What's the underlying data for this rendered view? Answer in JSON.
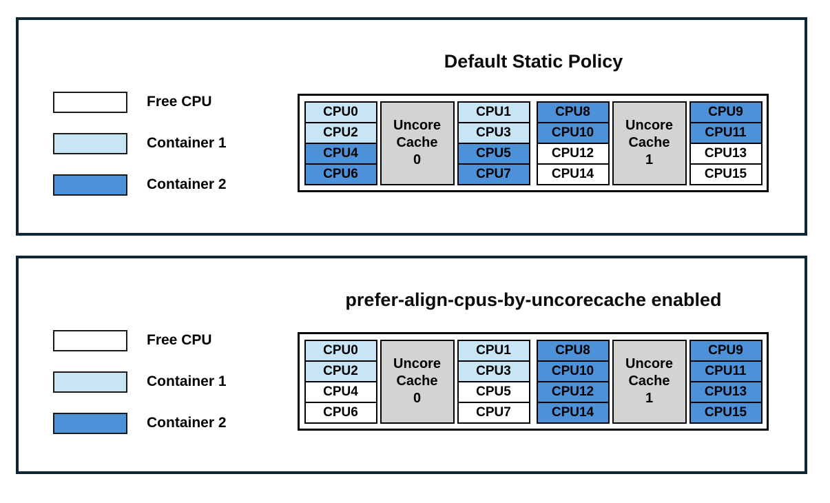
{
  "colors": {
    "free_cpu": "#ffffff",
    "container1": "#c7e5f5",
    "container2": "#4d92d9",
    "uncore_cache_bg": "#d3d3d1",
    "panel_border": "#0d2635",
    "cell_border": "#000000"
  },
  "legend": [
    {
      "label": "Free CPU",
      "state": "free"
    },
    {
      "label": "Container 1",
      "state": "container1"
    },
    {
      "label": "Container 2",
      "state": "container2"
    }
  ],
  "panels": [
    {
      "title": "Default Static Policy",
      "groups": [
        {
          "uncore_lines": [
            "Uncore",
            "Cache",
            "0"
          ],
          "left_cpus": [
            {
              "label": "CPU0",
              "state": "container1"
            },
            {
              "label": "CPU2",
              "state": "container1"
            },
            {
              "label": "CPU4",
              "state": "container2"
            },
            {
              "label": "CPU6",
              "state": "container2"
            }
          ],
          "right_cpus": [
            {
              "label": "CPU1",
              "state": "container1"
            },
            {
              "label": "CPU3",
              "state": "container1"
            },
            {
              "label": "CPU5",
              "state": "container2"
            },
            {
              "label": "CPU7",
              "state": "container2"
            }
          ]
        },
        {
          "uncore_lines": [
            "Uncore",
            "Cache",
            "1"
          ],
          "left_cpus": [
            {
              "label": "CPU8",
              "state": "container2"
            },
            {
              "label": "CPU10",
              "state": "container2"
            },
            {
              "label": "CPU12",
              "state": "free"
            },
            {
              "label": "CPU14",
              "state": "free"
            }
          ],
          "right_cpus": [
            {
              "label": "CPU9",
              "state": "container2"
            },
            {
              "label": "CPU11",
              "state": "container2"
            },
            {
              "label": "CPU13",
              "state": "free"
            },
            {
              "label": "CPU15",
              "state": "free"
            }
          ]
        }
      ]
    },
    {
      "title": "prefer-align-cpus-by-uncorecache enabled",
      "groups": [
        {
          "uncore_lines": [
            "Uncore",
            "Cache",
            "0"
          ],
          "left_cpus": [
            {
              "label": "CPU0",
              "state": "container1"
            },
            {
              "label": "CPU2",
              "state": "container1"
            },
            {
              "label": "CPU4",
              "state": "free"
            },
            {
              "label": "CPU6",
              "state": "free"
            }
          ],
          "right_cpus": [
            {
              "label": "CPU1",
              "state": "container1"
            },
            {
              "label": "CPU3",
              "state": "container1"
            },
            {
              "label": "CPU5",
              "state": "free"
            },
            {
              "label": "CPU7",
              "state": "free"
            }
          ]
        },
        {
          "uncore_lines": [
            "Uncore",
            "Cache",
            "1"
          ],
          "left_cpus": [
            {
              "label": "CPU8",
              "state": "container2"
            },
            {
              "label": "CPU10",
              "state": "container2"
            },
            {
              "label": "CPU12",
              "state": "container2"
            },
            {
              "label": "CPU14",
              "state": "container2"
            }
          ],
          "right_cpus": [
            {
              "label": "CPU9",
              "state": "container2"
            },
            {
              "label": "CPU11",
              "state": "container2"
            },
            {
              "label": "CPU13",
              "state": "container2"
            },
            {
              "label": "CPU15",
              "state": "container2"
            }
          ]
        }
      ]
    }
  ]
}
